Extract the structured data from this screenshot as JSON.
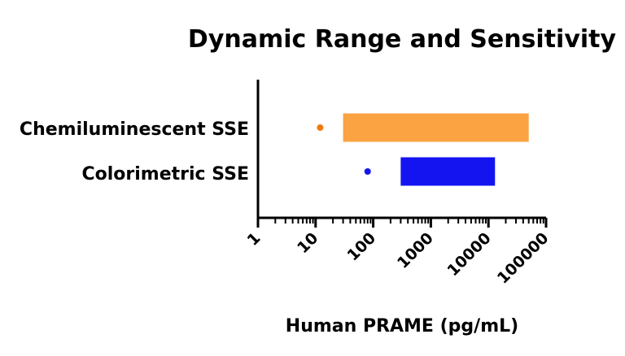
{
  "chart_data": {
    "type": "bar",
    "orientation": "horizontal",
    "title": "Dynamic Range and Sensitivity",
    "xlabel": "Human PRAME (pg/mL)",
    "ylabel": "",
    "xscale": "log",
    "xlim": [
      1,
      100000
    ],
    "xticks": [
      "1",
      "10",
      "100",
      "1000",
      "10000",
      "100000"
    ],
    "grid": false,
    "legend": "none",
    "categories": [
      "Chemiluminescent SSE",
      "Colorimetric SSE"
    ],
    "series": [
      {
        "range": [
          [
            30,
            50000
          ],
          [
            300,
            13000
          ]
        ],
        "sensitivity": [
          12,
          80
        ],
        "colors": [
          "#FBA243",
          "#1414F0"
        ],
        "point_colors": [
          "#F07A10",
          "#1414F0"
        ]
      }
    ]
  }
}
